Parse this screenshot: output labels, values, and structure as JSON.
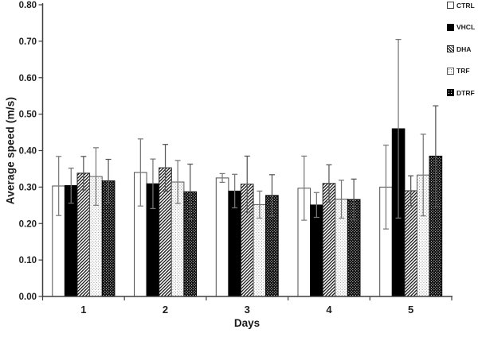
{
  "chart_data": {
    "type": "bar",
    "title": "",
    "xlabel": "Days",
    "ylabel": "Average speed (m/s)",
    "categories": [
      "1",
      "2",
      "3",
      "4",
      "5"
    ],
    "ylim": [
      0,
      0.8
    ],
    "ytick_step": 0.1,
    "ytick_labels": [
      "0.00",
      "0.10",
      "0.20",
      "0.30",
      "0.40",
      "0.50",
      "0.60",
      "0.70",
      "0.80"
    ],
    "grid": false,
    "legend_position": "top-right",
    "error_bars": true,
    "series": [
      {
        "name": "CTRL",
        "pattern": "plain-white",
        "values": [
          0.303,
          0.34,
          0.325,
          0.297,
          0.3
        ],
        "errors": [
          0.081,
          0.092,
          0.012,
          0.088,
          0.115
        ],
        "error_color": "#7a7a7a"
      },
      {
        "name": "VHCL",
        "pattern": "solid-black",
        "values": [
          0.304,
          0.309,
          0.289,
          0.251,
          0.46
        ],
        "errors": [
          0.048,
          0.068,
          0.046,
          0.034,
          0.245
        ],
        "error_color": "#767676"
      },
      {
        "name": "DHA",
        "pattern": "diagonal-hatch",
        "values": [
          0.338,
          0.353,
          0.308,
          0.31,
          0.29
        ],
        "errors": [
          0.046,
          0.064,
          0.077,
          0.051,
          0.041
        ],
        "error_color": "#565656"
      },
      {
        "name": "TRF",
        "pattern": "white-dots",
        "values": [
          0.329,
          0.314,
          0.252,
          0.267,
          0.333
        ],
        "errors": [
          0.079,
          0.059,
          0.037,
          0.052,
          0.112
        ],
        "error_color": "#7a7a7a"
      },
      {
        "name": "DTRF",
        "pattern": "black-dots",
        "values": [
          0.317,
          0.287,
          0.277,
          0.266,
          0.385
        ],
        "errors": [
          0.059,
          0.076,
          0.057,
          0.056,
          0.138
        ],
        "error_color": "#565656"
      }
    ]
  },
  "colors": {
    "axis": "#3f3f3f",
    "tick_text": "#1f1f1f",
    "bar_black": "#000000",
    "bar_outline_light": "#4d4d4d"
  }
}
